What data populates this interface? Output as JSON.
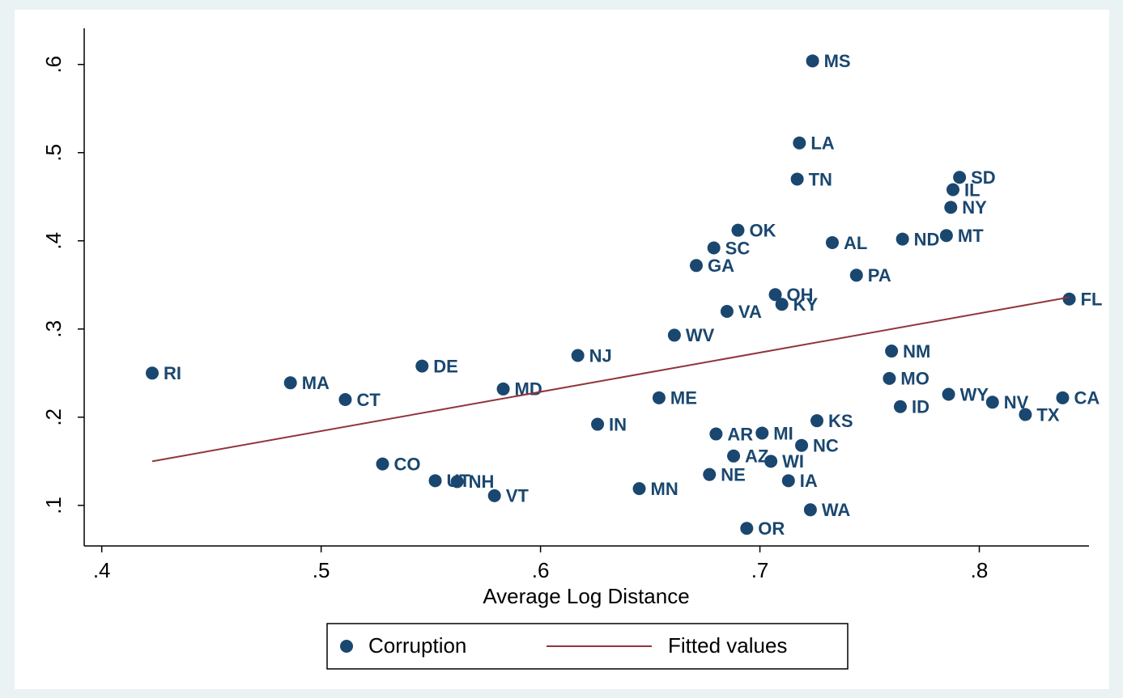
{
  "chart_data": {
    "type": "scatter",
    "x_label": "Average Log Distance",
    "xlim": [
      0.392,
      0.85
    ],
    "ylim": [
      0.054,
      0.641
    ],
    "xticks": [
      {
        "value": 0.4,
        "label": ".4"
      },
      {
        "value": 0.5,
        "label": ".5"
      },
      {
        "value": 0.6,
        "label": ".6"
      },
      {
        "value": 0.7,
        "label": ".7"
      },
      {
        "value": 0.8,
        "label": ".8"
      }
    ],
    "yticks": [
      {
        "value": 0.1,
        "label": ".1"
      },
      {
        "value": 0.2,
        "label": ".2"
      },
      {
        "value": 0.3,
        "label": ".3"
      },
      {
        "value": 0.4,
        "label": ".4"
      },
      {
        "value": 0.5,
        "label": ".5"
      },
      {
        "value": 0.6,
        "label": ".6"
      }
    ],
    "series": [
      {
        "name": "Corruption",
        "type": "scatter",
        "color": "#1a476f",
        "labels": [
          "RI",
          "MA",
          "CT",
          "DE",
          "MD",
          "NJ",
          "CO",
          "UT",
          "NH",
          "VT",
          "IN",
          "MN",
          "ME",
          "WV",
          "GA",
          "SC",
          "OK",
          "VA",
          "AR",
          "NE",
          "AZ",
          "OR",
          "MI",
          "WI",
          "OH",
          "KY",
          "TN",
          "LA",
          "NC",
          "IA",
          "WA",
          "MS",
          "KS",
          "AL",
          "PA",
          "NM",
          "MO",
          "ID",
          "ND",
          "MT",
          "WY",
          "NY",
          "IL",
          "SD",
          "NV",
          "TX",
          "CA",
          "FL"
        ],
        "x": [
          0.423,
          0.486,
          0.511,
          0.546,
          0.583,
          0.617,
          0.528,
          0.552,
          0.562,
          0.579,
          0.626,
          0.645,
          0.654,
          0.661,
          0.671,
          0.679,
          0.69,
          0.685,
          0.68,
          0.677,
          0.688,
          0.694,
          0.701,
          0.705,
          0.707,
          0.71,
          0.717,
          0.718,
          0.719,
          0.713,
          0.723,
          0.724,
          0.726,
          0.733,
          0.744,
          0.76,
          0.759,
          0.764,
          0.765,
          0.785,
          0.786,
          0.787,
          0.788,
          0.791,
          0.806,
          0.821,
          0.838,
          0.841
        ],
        "values": [
          0.25,
          0.239,
          0.22,
          0.258,
          0.232,
          0.27,
          0.147,
          0.128,
          0.127,
          0.111,
          0.192,
          0.119,
          0.222,
          0.293,
          0.372,
          0.392,
          0.412,
          0.32,
          0.181,
          0.135,
          0.156,
          0.074,
          0.182,
          0.15,
          0.339,
          0.328,
          0.47,
          0.511,
          0.168,
          0.128,
          0.095,
          0.604,
          0.196,
          0.398,
          0.361,
          0.275,
          0.244,
          0.212,
          0.402,
          0.406,
          0.226,
          0.438,
          0.458,
          0.472,
          0.217,
          0.203,
          0.222,
          0.334
        ]
      },
      {
        "name": "Fitted values",
        "type": "line",
        "color": "#90353b",
        "x": [
          0.423,
          0.841
        ],
        "values": [
          0.15,
          0.336
        ]
      }
    ]
  }
}
